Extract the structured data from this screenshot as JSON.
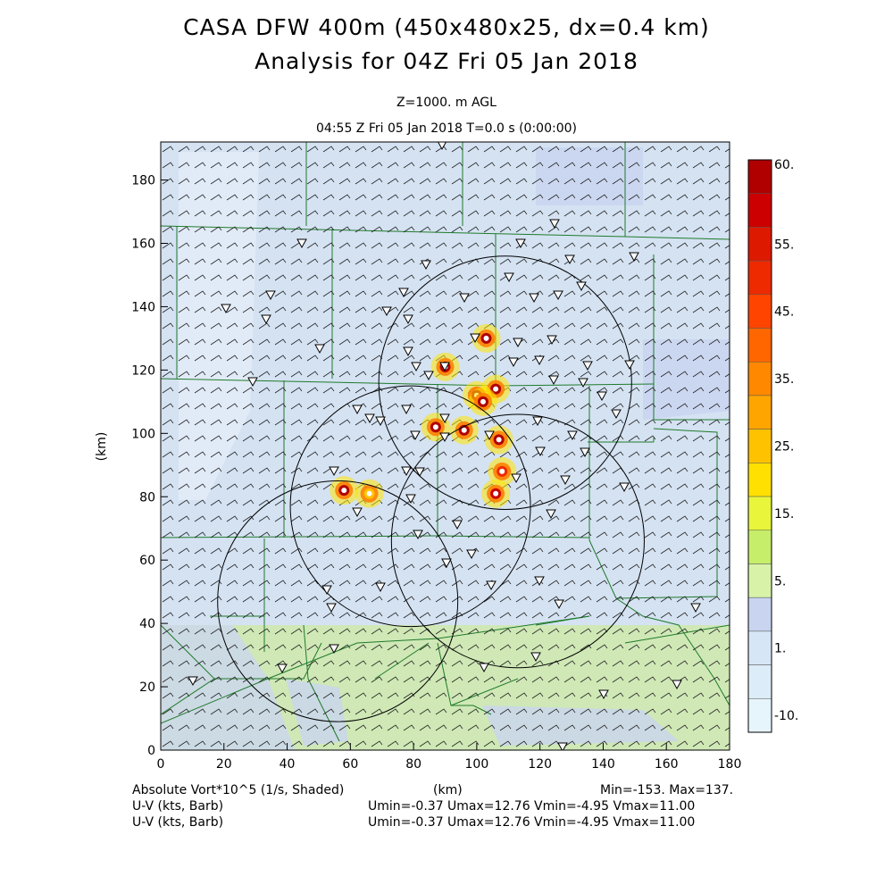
{
  "header": {
    "title_line1": "CASA DFW 400m (450x480x25, dx=0.4 km)",
    "title_line2": "Analysis for 04Z Fri 05 Jan 2018",
    "level": "Z=1000. m AGL",
    "valid_time": "04:55 Z Fri 05 Jan 2018    T=0.0 s (0:00:00)"
  },
  "chart_data": {
    "type": "heatmap",
    "xlabel": "(km)",
    "ylabel": "(km)",
    "xlim": [
      0,
      180
    ],
    "ylim": [
      0,
      192
    ],
    "x_ticks": [
      "0",
      "20",
      "40",
      "60",
      "80",
      "100",
      "120",
      "140",
      "160",
      "180"
    ],
    "y_ticks": [
      "0",
      "20",
      "40",
      "60",
      "80",
      "100",
      "120",
      "140",
      "160",
      "180"
    ],
    "field": "Absolute Vort*10^5 (1/s, Shaded)",
    "colorbar": {
      "levels": [
        {
          "label": "60.",
          "color": "#b00000"
        },
        {
          "label": "",
          "color": "#cc0000"
        },
        {
          "label": "55.",
          "color": "#dd1a00"
        },
        {
          "label": "",
          "color": "#ee2a00"
        },
        {
          "label": "45.",
          "color": "#ff4400"
        },
        {
          "label": "",
          "color": "#ff6600"
        },
        {
          "label": "35.",
          "color": "#ff8800"
        },
        {
          "label": "",
          "color": "#ffa500"
        },
        {
          "label": "25.",
          "color": "#ffc200"
        },
        {
          "label": "",
          "color": "#ffe000"
        },
        {
          "label": "15.",
          "color": "#e8f53a"
        },
        {
          "label": "",
          "color": "#c6ee6a"
        },
        {
          "label": "5.",
          "color": "#d8f2a8"
        },
        {
          "label": "",
          "color": "#c8d4f0"
        },
        {
          "label": "1.",
          "color": "#d6e6f6"
        },
        {
          "label": "",
          "color": "#dcecf8"
        },
        {
          "label": "-10.",
          "color": "#e6f4fb"
        }
      ]
    },
    "radar_rings": [
      {
        "cx": 56,
        "cy": 47,
        "r": 38
      },
      {
        "cx": 79,
        "cy": 77,
        "r": 38
      },
      {
        "cx": 109,
        "cy": 116,
        "r": 40
      },
      {
        "cx": 113,
        "cy": 66,
        "r": 40
      }
    ],
    "vorticity_maxima": [
      {
        "x": 58,
        "y": 82,
        "v": 60
      },
      {
        "x": 90,
        "y": 121,
        "v": 60
      },
      {
        "x": 103,
        "y": 130,
        "v": 60
      },
      {
        "x": 106,
        "y": 114,
        "v": 60
      },
      {
        "x": 100,
        "y": 112,
        "v": 60
      },
      {
        "x": 102,
        "y": 110,
        "v": 60
      },
      {
        "x": 87,
        "y": 102,
        "v": 60
      },
      {
        "x": 96,
        "y": 101,
        "v": 60
      },
      {
        "x": 107,
        "y": 98,
        "v": 60
      },
      {
        "x": 108,
        "y": 88,
        "v": 45
      },
      {
        "x": 106,
        "y": 81,
        "v": 55
      },
      {
        "x": 66,
        "y": 81,
        "v": 25
      }
    ]
  },
  "footer": {
    "field_line": "Absolute Vort*10^5 (1/s, Shaded)",
    "km_label": "(km)",
    "minmax": "Min=-153. Max=137.",
    "barb1_label": "U-V (kts, Barb)",
    "barb1_stats": "Umin=-0.37 Umax=12.76 Vmin=-4.95 Vmax=11.00",
    "barb2_label": "U-V (kts, Barb)",
    "barb2_stats": "Umin=-0.37 Umax=12.76 Vmin=-4.95 Vmax=11.00"
  }
}
